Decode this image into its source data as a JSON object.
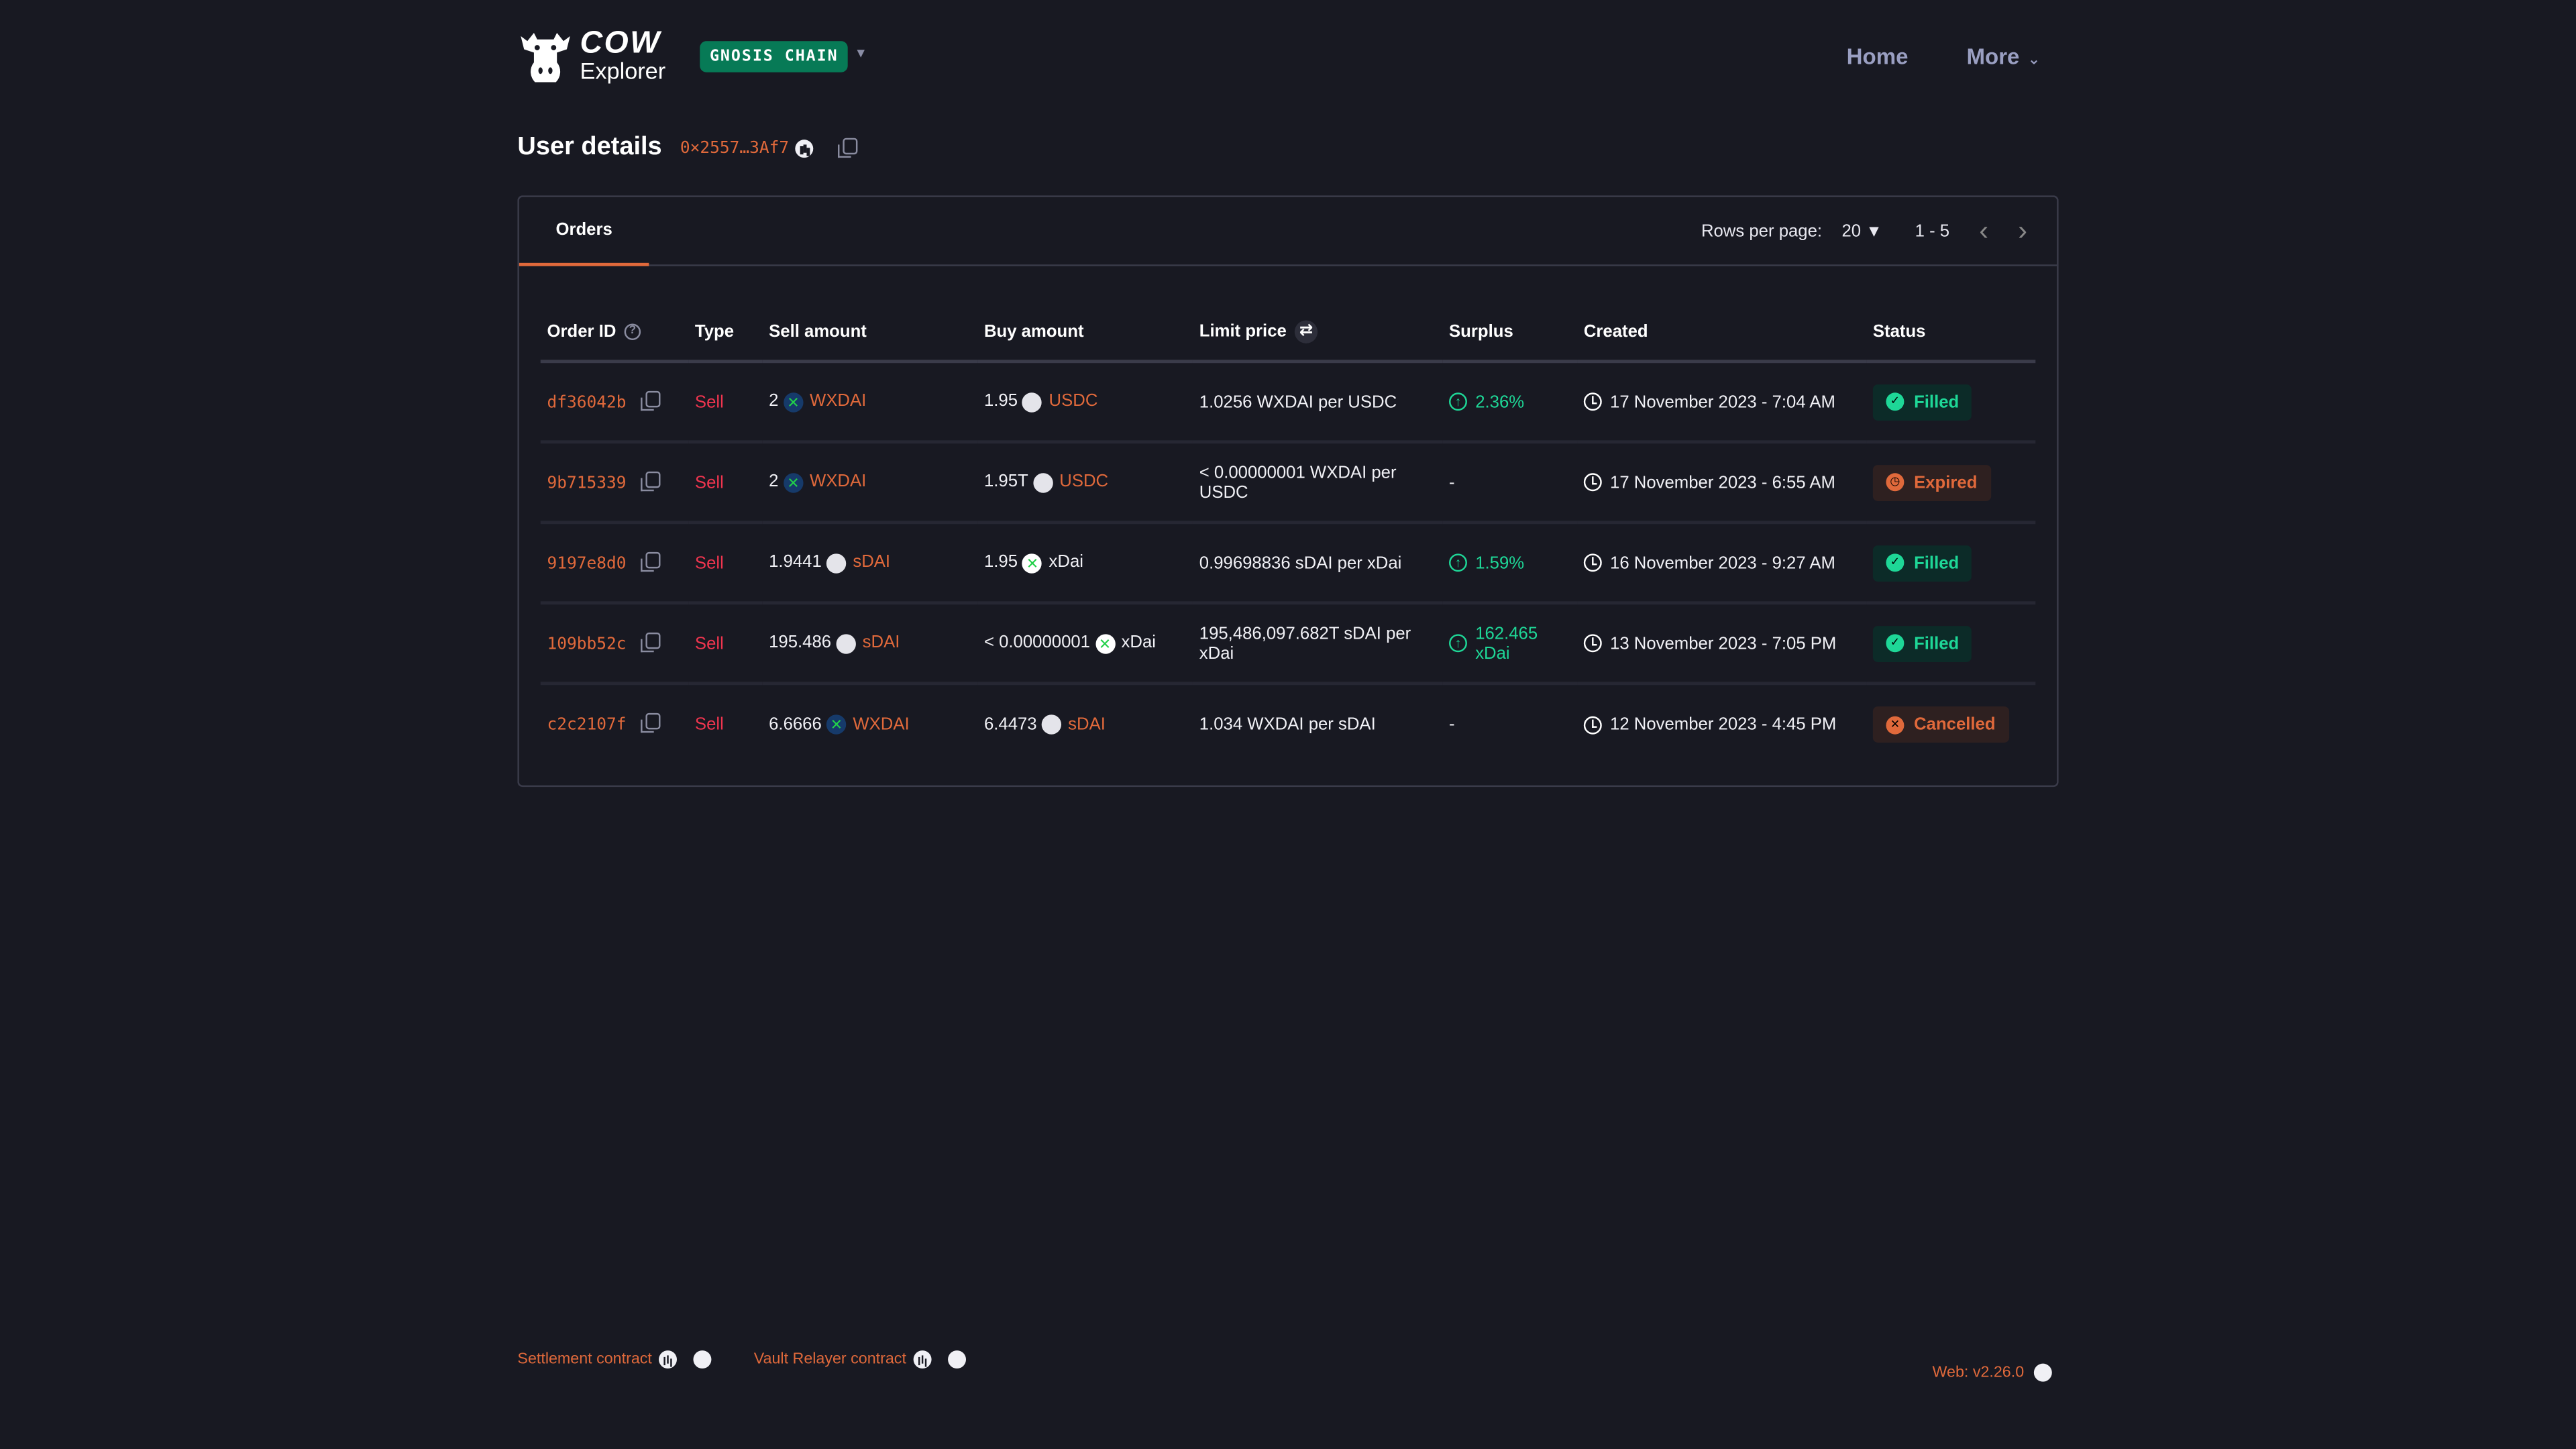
{
  "header": {
    "logo_top": "COW",
    "logo_bottom": "Explorer",
    "network": "GNOSIS CHAIN",
    "nav": [
      {
        "label": "Home"
      },
      {
        "label": "More"
      }
    ]
  },
  "page": {
    "title": "User details",
    "address": "0×2557…3Af7"
  },
  "tabs": [
    {
      "label": "Orders",
      "active": true
    }
  ],
  "pagination": {
    "rows_label": "Rows per page:",
    "rows_value": "20",
    "range": "1 - 5"
  },
  "table": {
    "headers": [
      "Order ID",
      "Type",
      "Sell amount",
      "Buy amount",
      "Limit price",
      "Surplus",
      "Created",
      "Status"
    ],
    "rows": [
      {
        "id": "df36042b",
        "type": "Sell",
        "sell_amt": "2",
        "sell_tok": "WXDAI",
        "sell_icon": "xdai",
        "buy_amt": "1.95",
        "buy_tok": "USDC",
        "buy_icon": "eth",
        "limit": "1.0256 WXDAI per USDC",
        "surplus": "2.36%",
        "created": "17 November 2023 - 7:04 AM",
        "status": "Filled"
      },
      {
        "id": "9b715339",
        "type": "Sell",
        "sell_amt": "2",
        "sell_tok": "WXDAI",
        "sell_icon": "xdai",
        "buy_amt": "1.95T",
        "buy_tok": "USDC",
        "buy_icon": "eth",
        "limit": "< 0.00000001 WXDAI per USDC",
        "surplus": "-",
        "created": "17 November 2023 - 6:55 AM",
        "status": "Expired"
      },
      {
        "id": "9197e8d0",
        "type": "Sell",
        "sell_amt": "1.9441",
        "sell_tok": "sDAI",
        "sell_icon": "eth",
        "buy_amt": "1.95",
        "buy_tok": "xDai",
        "buy_icon": "xdai-white",
        "limit": "0.99698836 sDAI per xDai",
        "surplus": "1.59%",
        "created": "16 November 2023 - 9:27 AM",
        "status": "Filled"
      },
      {
        "id": "109bb52c",
        "type": "Sell",
        "sell_amt": "195.486",
        "sell_tok": "sDAI",
        "sell_icon": "eth",
        "buy_amt": "< 0.00000001",
        "buy_tok": "xDai",
        "buy_icon": "xdai-white",
        "limit": "195,486,097.682T sDAI per xDai",
        "surplus": "162.465 xDai",
        "created": "13 November 2023 - 7:05 PM",
        "status": "Filled"
      },
      {
        "id": "c2c2107f",
        "type": "Sell",
        "sell_amt": "6.6666",
        "sell_tok": "WXDAI",
        "sell_icon": "xdai",
        "buy_amt": "6.4473",
        "buy_tok": "sDAI",
        "buy_icon": "eth",
        "limit": "1.034 WXDAI per sDAI",
        "surplus": "-",
        "created": "12 November 2023 - 4:45 PM",
        "status": "Cancelled"
      }
    ]
  },
  "footer": {
    "settlement": "Settlement contract",
    "vault": "Vault Relayer contract",
    "version": "Web: v2.26.0"
  },
  "colors": {
    "background": "#181922",
    "accent": "#e0693b",
    "sell": "#f0354f",
    "success": "#1ed797",
    "network": "#077a56"
  }
}
